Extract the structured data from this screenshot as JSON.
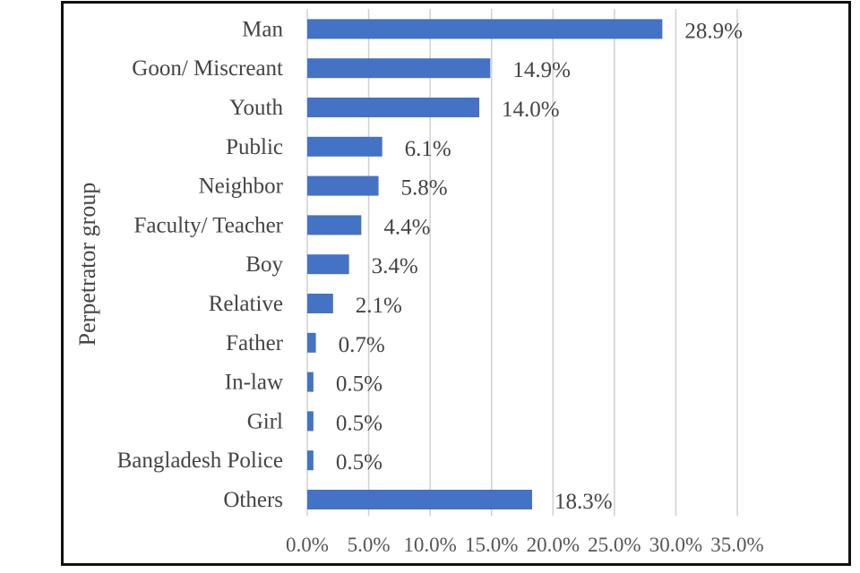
{
  "chart_data": {
    "type": "bar",
    "orientation": "horizontal",
    "title": "",
    "xlabel": "",
    "ylabel": "Perpetrator group",
    "categories": [
      "Man",
      "Goon/ Miscreant",
      "Youth",
      "Public",
      "Neighbor",
      "Faculty/ Teacher",
      "Boy",
      "Relative",
      "Father",
      "In-law",
      "Girl",
      "Bangladesh Police",
      "Others"
    ],
    "values": [
      28.9,
      14.9,
      14.0,
      6.1,
      5.8,
      4.4,
      3.4,
      2.1,
      0.7,
      0.5,
      0.5,
      0.5,
      18.3
    ],
    "data_labels": [
      "28.9%",
      "14.9%",
      "14.0%",
      "6.1%",
      "5.8%",
      "4.4%",
      "3.4%",
      "2.1%",
      "0.7%",
      "0.5%",
      "0.5%",
      "0.5%",
      "18.3%"
    ],
    "xlim": [
      0,
      35
    ],
    "xticks": [
      0,
      5,
      10,
      15,
      20,
      25,
      30,
      35
    ],
    "xtick_labels": [
      "0.0%",
      "5.0%",
      "10.0%",
      "15.0%",
      "20.0%",
      "25.0%",
      "30.0%",
      "35.0%"
    ],
    "grid": true,
    "legend": "none",
    "colors": {
      "bar": "#4472c4",
      "grid": "#d0d0d0",
      "text": "#444444",
      "frame": "#111111"
    }
  }
}
